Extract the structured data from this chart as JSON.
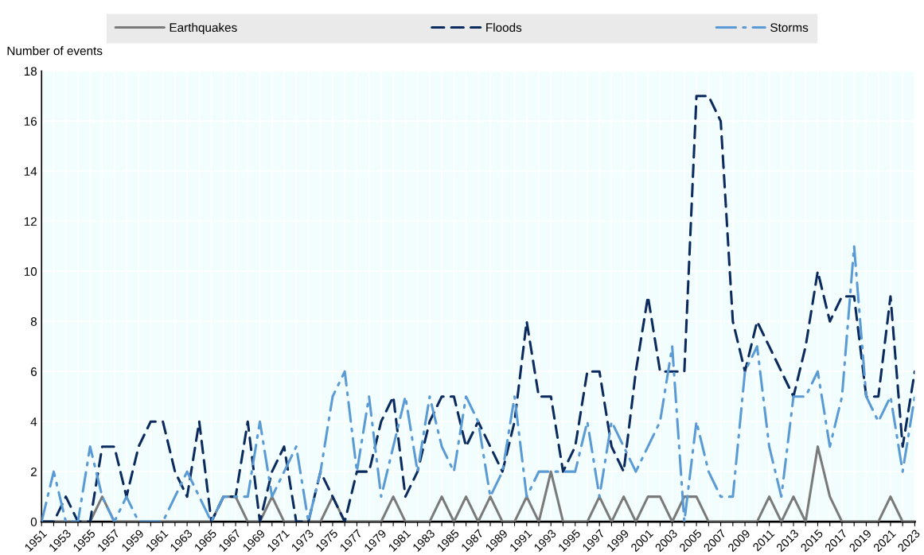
{
  "chart_data": {
    "type": "line",
    "ylabel": "Number of events",
    "categories": [
      "1951",
      null,
      "1953",
      null,
      "1955",
      null,
      "1957",
      null,
      "1959",
      null,
      "1961",
      null,
      "1963",
      null,
      "1965",
      null,
      "1967",
      null,
      "1969",
      null,
      "1971",
      null,
      "1973",
      null,
      "1975",
      null,
      "1977",
      null,
      "1979",
      null,
      "1981",
      null,
      "1983",
      null,
      "1985",
      null,
      "1987",
      null,
      "1989",
      null,
      "1991",
      null,
      "1993",
      null,
      "1995",
      null,
      "1997",
      null,
      "1999",
      null,
      "2001",
      null,
      "2003",
      null,
      "2005",
      null,
      "2007",
      null,
      "2009",
      null,
      "2011",
      null,
      "2013",
      null,
      "2015",
      null,
      "2017",
      null,
      "2019",
      null,
      "2021",
      null,
      "2023"
    ],
    "series": [
      {
        "name": "Earthquakes",
        "color": "#7a7a7a",
        "line_style": "solid",
        "values": [
          0,
          0,
          0,
          0,
          0,
          1,
          0,
          0,
          0,
          0,
          0,
          0,
          0,
          0,
          0,
          1,
          1,
          0,
          0,
          1,
          0,
          0,
          0,
          0,
          1,
          0,
          0,
          0,
          0,
          1,
          0,
          0,
          0,
          1,
          0,
          1,
          0,
          1,
          0,
          0,
          1,
          0,
          2,
          0,
          0,
          0,
          1,
          0,
          1,
          0,
          1,
          1,
          0,
          1,
          1,
          0,
          0,
          0,
          0,
          0,
          1,
          0,
          1,
          0,
          3,
          1,
          0,
          0,
          0,
          0,
          1,
          0,
          0
        ]
      },
      {
        "name": "Floods",
        "color": "#0b2a5e",
        "line_style": "dashed",
        "values": [
          0,
          0,
          1,
          0,
          0,
          3,
          3,
          1,
          3,
          4,
          4,
          2,
          1,
          4,
          0,
          1,
          1,
          4,
          0,
          2,
          3,
          0,
          0,
          2,
          1,
          0,
          2,
          2,
          4,
          5,
          1,
          2,
          4,
          5,
          5,
          3,
          4,
          3,
          2,
          4,
          8,
          5,
          5,
          2,
          3,
          6,
          6,
          3,
          2,
          6,
          9,
          6,
          6,
          6,
          17,
          17,
          16,
          8,
          6,
          8,
          7,
          6,
          5,
          7,
          10,
          8,
          9,
          9,
          5,
          5,
          9,
          3,
          6
        ]
      },
      {
        "name": "Storms",
        "color": "#5b9bd5",
        "line_style": "dashdot",
        "values": [
          0,
          2,
          0,
          0,
          3,
          1,
          0,
          1,
          0,
          0,
          0,
          1,
          2,
          1,
          0,
          1,
          1,
          1,
          4,
          1,
          2,
          3,
          0,
          2,
          5,
          6,
          2,
          5,
          1,
          3,
          5,
          2,
          5,
          3,
          2,
          5,
          4,
          1,
          2,
          5,
          1,
          2,
          2,
          2,
          2,
          4,
          1,
          4,
          3,
          2,
          3,
          4,
          7,
          0,
          4,
          2,
          1,
          1,
          6,
          7,
          3,
          1,
          5,
          5,
          6,
          3,
          5,
          11,
          5,
          4,
          5,
          2,
          5
        ]
      }
    ],
    "ylim": [
      0,
      18
    ],
    "yticks": [
      0,
      2,
      4,
      6,
      8,
      10,
      12,
      14,
      16,
      18
    ],
    "grid": true,
    "legend": "top",
    "marker": "none"
  }
}
